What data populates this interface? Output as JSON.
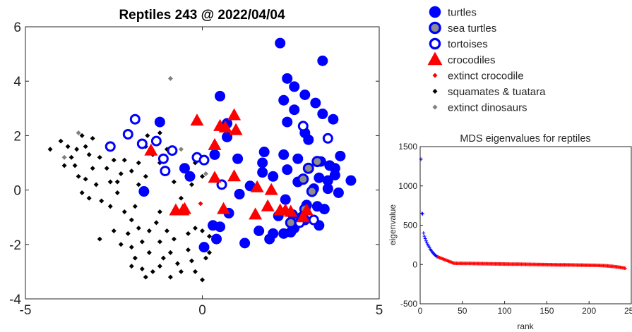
{
  "chart_data": [
    {
      "type": "scatter",
      "title": "Reptiles 243 @ 2022/04/04",
      "xlabel": "",
      "ylabel": "",
      "xlim": [
        -5,
        5
      ],
      "ylim": [
        -4,
        6
      ],
      "xticks": [
        -5,
        0,
        5
      ],
      "yticks": [
        -4,
        -2,
        0,
        2,
        4,
        6
      ],
      "grid": false,
      "legend_position": "outside-top-right",
      "series": [
        {
          "name": "turtles",
          "marker": "filled-circle",
          "color": "#0000ff",
          "points": [
            [
              2.2,
              5.4
            ],
            [
              3.4,
              4.75
            ],
            [
              0.5,
              3.45
            ],
            [
              2.4,
              4.1
            ],
            [
              2.6,
              3.8
            ],
            [
              2.9,
              3.5
            ],
            [
              2.3,
              3.3
            ],
            [
              2.6,
              2.95
            ],
            [
              3.2,
              3.2
            ],
            [
              3.4,
              2.8
            ],
            [
              2.9,
              2.1
            ],
            [
              3.7,
              2.6
            ],
            [
              0.7,
              2.45
            ],
            [
              0.7,
              1.95
            ],
            [
              2.4,
              2.5
            ],
            [
              3.0,
              1.85
            ],
            [
              -1.2,
              2.5
            ],
            [
              1.0,
              1.15
            ],
            [
              1.75,
              1.4
            ],
            [
              2.3,
              1.3
            ],
            [
              3.35,
              1.05
            ],
            [
              2.7,
              1.15
            ],
            [
              3.9,
              1.25
            ],
            [
              0.35,
              1.3
            ],
            [
              -0.5,
              0.8
            ],
            [
              -0.35,
              0.5
            ],
            [
              1.7,
              1.0
            ],
            [
              1.7,
              0.65
            ],
            [
              2.0,
              0.5
            ],
            [
              2.4,
              0.75
            ],
            [
              3.6,
              0.9
            ],
            [
              3.75,
              0.8
            ],
            [
              3.3,
              0.45
            ],
            [
              3.55,
              0.35
            ],
            [
              3.75,
              0.55
            ],
            [
              4.2,
              0.35
            ],
            [
              1.35,
              0.15
            ],
            [
              3.15,
              0.05
            ],
            [
              3.55,
              0.05
            ],
            [
              2.7,
              0.3
            ],
            [
              1.05,
              -0.15
            ],
            [
              3.85,
              -0.1
            ],
            [
              2.35,
              -0.35
            ],
            [
              2.95,
              -0.55
            ],
            [
              3.25,
              -0.6
            ],
            [
              3.45,
              -0.7
            ],
            [
              -1.65,
              -0.05
            ],
            [
              0.75,
              -0.85
            ],
            [
              2.15,
              -0.95
            ],
            [
              2.55,
              -0.9
            ],
            [
              2.8,
              -1.0
            ],
            [
              1.6,
              -1.5
            ],
            [
              2.3,
              -1.6
            ],
            [
              2.5,
              -1.55
            ],
            [
              2.6,
              -1.4
            ],
            [
              2.9,
              -1.1
            ],
            [
              3.3,
              -1.3
            ],
            [
              0.3,
              -1.3
            ],
            [
              0.5,
              -1.35
            ],
            [
              0.4,
              -1.8
            ],
            [
              1.2,
              -1.95
            ],
            [
              2.0,
              -1.6
            ],
            [
              1.9,
              -1.8
            ],
            [
              0.05,
              -2.1
            ]
          ]
        },
        {
          "name": "sea turtles",
          "marker": "circle-grey-fill",
          "color": "#0000ff",
          "points": [
            [
              2.85,
              0.4
            ],
            [
              3.25,
              1.05
            ],
            [
              3.0,
              0.8
            ],
            [
              3.1,
              -0.05
            ],
            [
              2.9,
              -0.7
            ],
            [
              2.5,
              -1.2
            ]
          ]
        },
        {
          "name": "tortoises",
          "marker": "open-circle",
          "color": "#0000ff",
          "points": [
            [
              -2.6,
              1.6
            ],
            [
              -2.1,
              2.05
            ],
            [
              -1.9,
              2.6
            ],
            [
              -1.7,
              1.7
            ],
            [
              -1.3,
              1.8
            ],
            [
              -1.1,
              1.15
            ],
            [
              -0.85,
              1.45
            ],
            [
              -1.05,
              0.7
            ],
            [
              -0.15,
              1.2
            ],
            [
              0.05,
              1.1
            ],
            [
              0.55,
              0.2
            ],
            [
              2.85,
              2.35
            ],
            [
              3.55,
              1.9
            ],
            [
              3.15,
              -1.1
            ],
            [
              2.75,
              -1.2
            ]
          ]
        },
        {
          "name": "crocodiles",
          "marker": "filled-triangle",
          "color": "#ff0000",
          "points": [
            [
              -0.15,
              2.55
            ],
            [
              0.5,
              2.35
            ],
            [
              0.9,
              2.75
            ],
            [
              0.95,
              2.2
            ],
            [
              0.65,
              2.3
            ],
            [
              0.35,
              1.65
            ],
            [
              -1.45,
              1.45
            ],
            [
              0.35,
              0.45
            ],
            [
              0.9,
              0.5
            ],
            [
              1.55,
              0.1
            ],
            [
              1.95,
              0.0
            ],
            [
              -0.5,
              -0.7
            ],
            [
              -0.55,
              -0.75
            ],
            [
              -0.75,
              -0.75
            ],
            [
              0.6,
              -0.7
            ],
            [
              1.5,
              -0.9
            ],
            [
              1.85,
              -0.6
            ],
            [
              2.2,
              -0.75
            ],
            [
              2.35,
              -0.75
            ],
            [
              2.5,
              -0.8
            ],
            [
              2.85,
              -1.0
            ],
            [
              2.95,
              -0.75
            ]
          ]
        },
        {
          "name": "extinct crocodile",
          "marker": "small-filled-diamond",
          "color": "#ff0000",
          "points": [
            [
              -0.05,
              -0.5
            ]
          ]
        },
        {
          "name": "squamates & tuatara",
          "marker": "small-filled-diamond",
          "color": "#000000",
          "points": [
            [
              -4.3,
              1.5
            ],
            [
              -4.0,
              1.8
            ],
            [
              -3.8,
              1.6
            ],
            [
              -3.7,
              1.2
            ],
            [
              -3.55,
              1.5
            ],
            [
              -3.4,
              2.0
            ],
            [
              -3.3,
              1.6
            ],
            [
              -3.1,
              1.9
            ],
            [
              -3.2,
              1.3
            ],
            [
              -3.6,
              0.9
            ],
            [
              -3.9,
              0.9
            ],
            [
              -3.5,
              0.5
            ],
            [
              -3.3,
              0.4
            ],
            [
              -3.1,
              0.8
            ],
            [
              -2.9,
              1.2
            ],
            [
              -2.7,
              0.8
            ],
            [
              -2.5,
              1.1
            ],
            [
              -2.3,
              0.6
            ],
            [
              -2.6,
              0.3
            ],
            [
              -3.0,
              0.2
            ],
            [
              -3.4,
              -0.1
            ],
            [
              -3.2,
              -0.3
            ],
            [
              -2.85,
              -0.4
            ],
            [
              -2.2,
              1.1
            ],
            [
              -2.0,
              0.7
            ],
            [
              -1.8,
              1.0
            ],
            [
              -1.6,
              0.5
            ],
            [
              -1.4,
              1.3
            ],
            [
              -1.2,
              1.0
            ],
            [
              -1.0,
              1.5
            ],
            [
              -1.2,
              2.1
            ],
            [
              -1.55,
              2.0
            ],
            [
              -2.4,
              -0.1
            ],
            [
              -2.6,
              -0.6
            ],
            [
              -2.2,
              -0.8
            ],
            [
              -1.9,
              -0.6
            ],
            [
              -2.0,
              -1.1
            ],
            [
              -1.8,
              -1.4
            ],
            [
              -2.1,
              -1.6
            ],
            [
              -2.5,
              -1.5
            ],
            [
              -2.9,
              -1.8
            ],
            [
              -2.3,
              -2.0
            ],
            [
              -2.0,
              -2.1
            ],
            [
              -1.7,
              -1.9
            ],
            [
              -1.5,
              -1.5
            ],
            [
              -1.3,
              -1.2
            ],
            [
              -1.2,
              -0.8
            ],
            [
              -1.0,
              -1.5
            ],
            [
              -0.8,
              -1.8
            ],
            [
              -1.2,
              -1.9
            ],
            [
              -1.5,
              -2.3
            ],
            [
              -1.9,
              -2.5
            ],
            [
              -2.0,
              -2.8
            ],
            [
              -1.7,
              -2.9
            ],
            [
              -1.4,
              -3.0
            ],
            [
              -1.6,
              -3.2
            ],
            [
              -1.1,
              -2.5
            ],
            [
              -0.9,
              -2.3
            ],
            [
              -0.7,
              -2.7
            ],
            [
              -0.6,
              -3.0
            ],
            [
              -0.9,
              -3.2
            ],
            [
              -1.2,
              -2.8
            ],
            [
              -0.4,
              -2.2
            ],
            [
              -0.3,
              -2.6
            ],
            [
              -0.2,
              -3.0
            ],
            [
              0.0,
              -3.3
            ],
            [
              0.1,
              -2.5
            ],
            [
              -0.4,
              -1.6
            ],
            [
              -0.2,
              -1.4
            ],
            [
              0.0,
              -1.5
            ],
            [
              0.2,
              -1.7
            ],
            [
              0.2,
              -2.3
            ],
            [
              -0.6,
              -0.3
            ],
            [
              -0.8,
              0.3
            ],
            [
              -0.3,
              0.2
            ],
            [
              -0.2,
              1.0
            ],
            [
              0.0,
              0.5
            ],
            [
              -1.6,
              1.6
            ],
            [
              -1.8,
              0.2
            ],
            [
              -2.4,
              0.3
            ]
          ]
        },
        {
          "name": "extinct dinosaurs",
          "marker": "small-filled-diamond",
          "color": "#808080",
          "points": [
            [
              -0.9,
              4.1
            ],
            [
              -3.9,
              1.2
            ],
            [
              -3.5,
              2.1
            ],
            [
              -0.6,
              1.5
            ],
            [
              0.1,
              0.6
            ]
          ]
        }
      ]
    },
    {
      "type": "scatter",
      "title": "MDS eigenvalues for reptiles",
      "xlabel": "rank",
      "ylabel": "eigenvalue",
      "xlim": [
        0,
        250
      ],
      "ylim": [
        -500,
        1500
      ],
      "xticks": [
        0,
        50,
        100,
        150,
        200,
        250
      ],
      "yticks": [
        -500,
        0,
        500,
        1000,
        1500
      ],
      "grid": false,
      "marker": "plus",
      "series": [
        {
          "name": "",
          "color": "#0000ff",
          "points": [
            [
              1,
              1340
            ],
            [
              2,
              650
            ],
            [
              3,
              645
            ],
            [
              4,
              400
            ],
            [
              5,
              360
            ],
            [
              6,
              330
            ],
            [
              7,
              300
            ],
            [
              8,
              275
            ],
            [
              9,
              255
            ],
            [
              10,
              235
            ],
            [
              11,
              215
            ],
            [
              12,
              195
            ],
            [
              13,
              180
            ],
            [
              14,
              165
            ],
            [
              15,
              150
            ],
            [
              16,
              138
            ],
            [
              17,
              127
            ],
            [
              18,
              117
            ],
            [
              19,
              108
            ],
            [
              20,
              100
            ]
          ]
        },
        {
          "name": "",
          "color": "#ff0000",
          "points": []
        }
      ]
    }
  ]
}
